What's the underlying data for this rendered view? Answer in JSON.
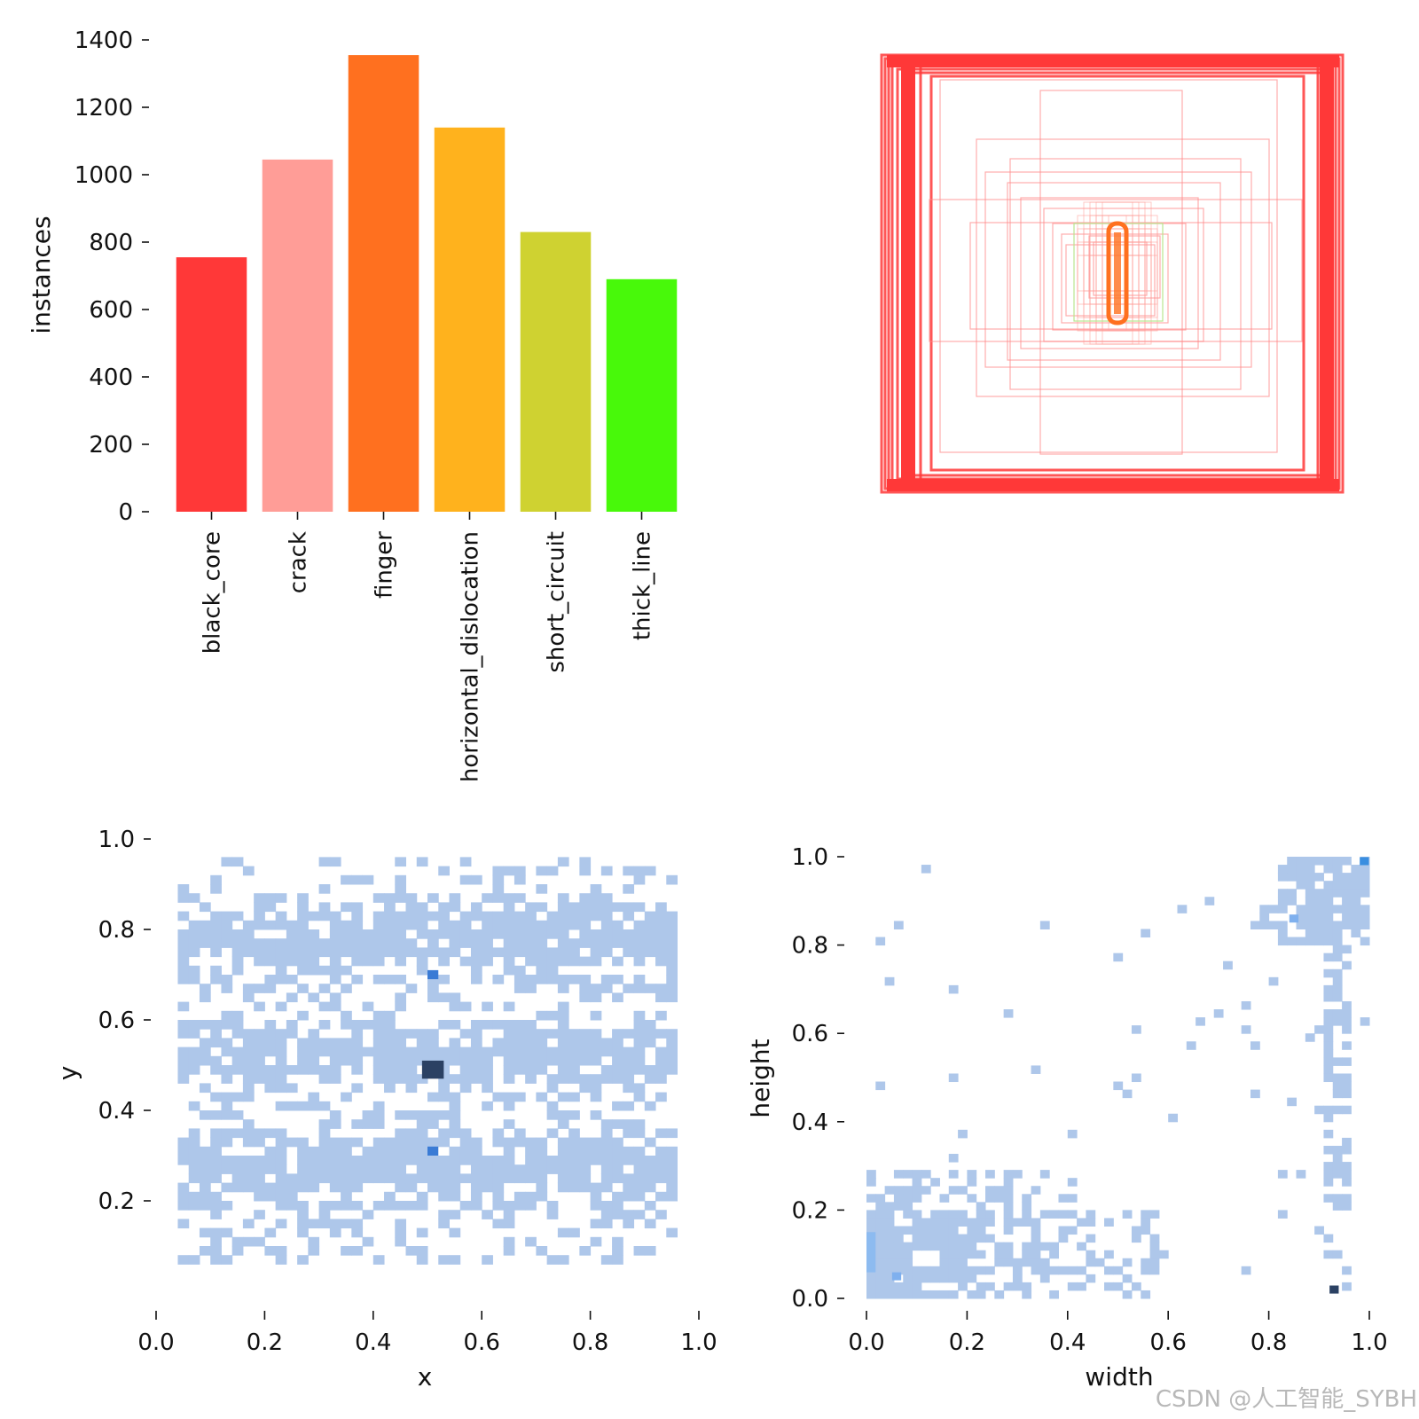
{
  "watermark": "CSDN @人工智能_SYBH",
  "chart_data": [
    {
      "type": "bar",
      "ylabel": "instances",
      "categories": [
        "black_core",
        "crack",
        "finger",
        "horizontal_dislocation",
        "short_circuit",
        "thick_line"
      ],
      "values": [
        755,
        1045,
        1355,
        1140,
        830,
        690
      ],
      "colors": [
        "#ff3838",
        "#ff9d97",
        "#ff701f",
        "#ffb21d",
        "#cfd231",
        "#48f90a"
      ],
      "ylim": [
        0,
        1400
      ],
      "yticks": [
        "0",
        "200",
        "400",
        "600",
        "800",
        "1000",
        "1200",
        "1400"
      ],
      "grid": false
    },
    {
      "type": "boxes",
      "description_color": "#ff3838"
    },
    {
      "type": "heatmap",
      "xlabel": "x",
      "ylabel": "y",
      "xticks": [
        "0.0",
        "0.2",
        "0.4",
        "0.6",
        "0.8",
        "1.0"
      ],
      "yticks": [
        "0.2",
        "0.4",
        "0.6",
        "0.8",
        "1.0"
      ],
      "xlim": [
        0,
        1
      ],
      "ylim": [
        0.05,
        1.0
      ],
      "cell_color": "#aec7ea",
      "hot_spots": [
        {
          "x": 0.5,
          "y": 0.5,
          "level": "high"
        },
        {
          "x": 0.51,
          "y": 0.7,
          "level": "medium"
        },
        {
          "x": 0.51,
          "y": 0.31,
          "level": "medium"
        }
      ]
    },
    {
      "type": "heatmap",
      "xlabel": "width",
      "ylabel": "height",
      "xticks": [
        "0.0",
        "0.2",
        "0.4",
        "0.6",
        "0.8",
        "1.0"
      ],
      "yticks": [
        "0.0",
        "0.2",
        "0.4",
        "0.6",
        "0.8",
        "1.0"
      ],
      "xlim": [
        0,
        1
      ],
      "ylim": [
        0,
        1
      ],
      "cell_color": "#aec7ea",
      "hot_spots": [
        {
          "x": 0.93,
          "y": 0.02,
          "level": "high"
        },
        {
          "x": 0.99,
          "y": 0.99,
          "level": "medium"
        },
        {
          "x": 0.06,
          "y": 0.05,
          "level": "low"
        },
        {
          "x": 0.85,
          "y": 0.86,
          "level": "low"
        }
      ]
    }
  ]
}
